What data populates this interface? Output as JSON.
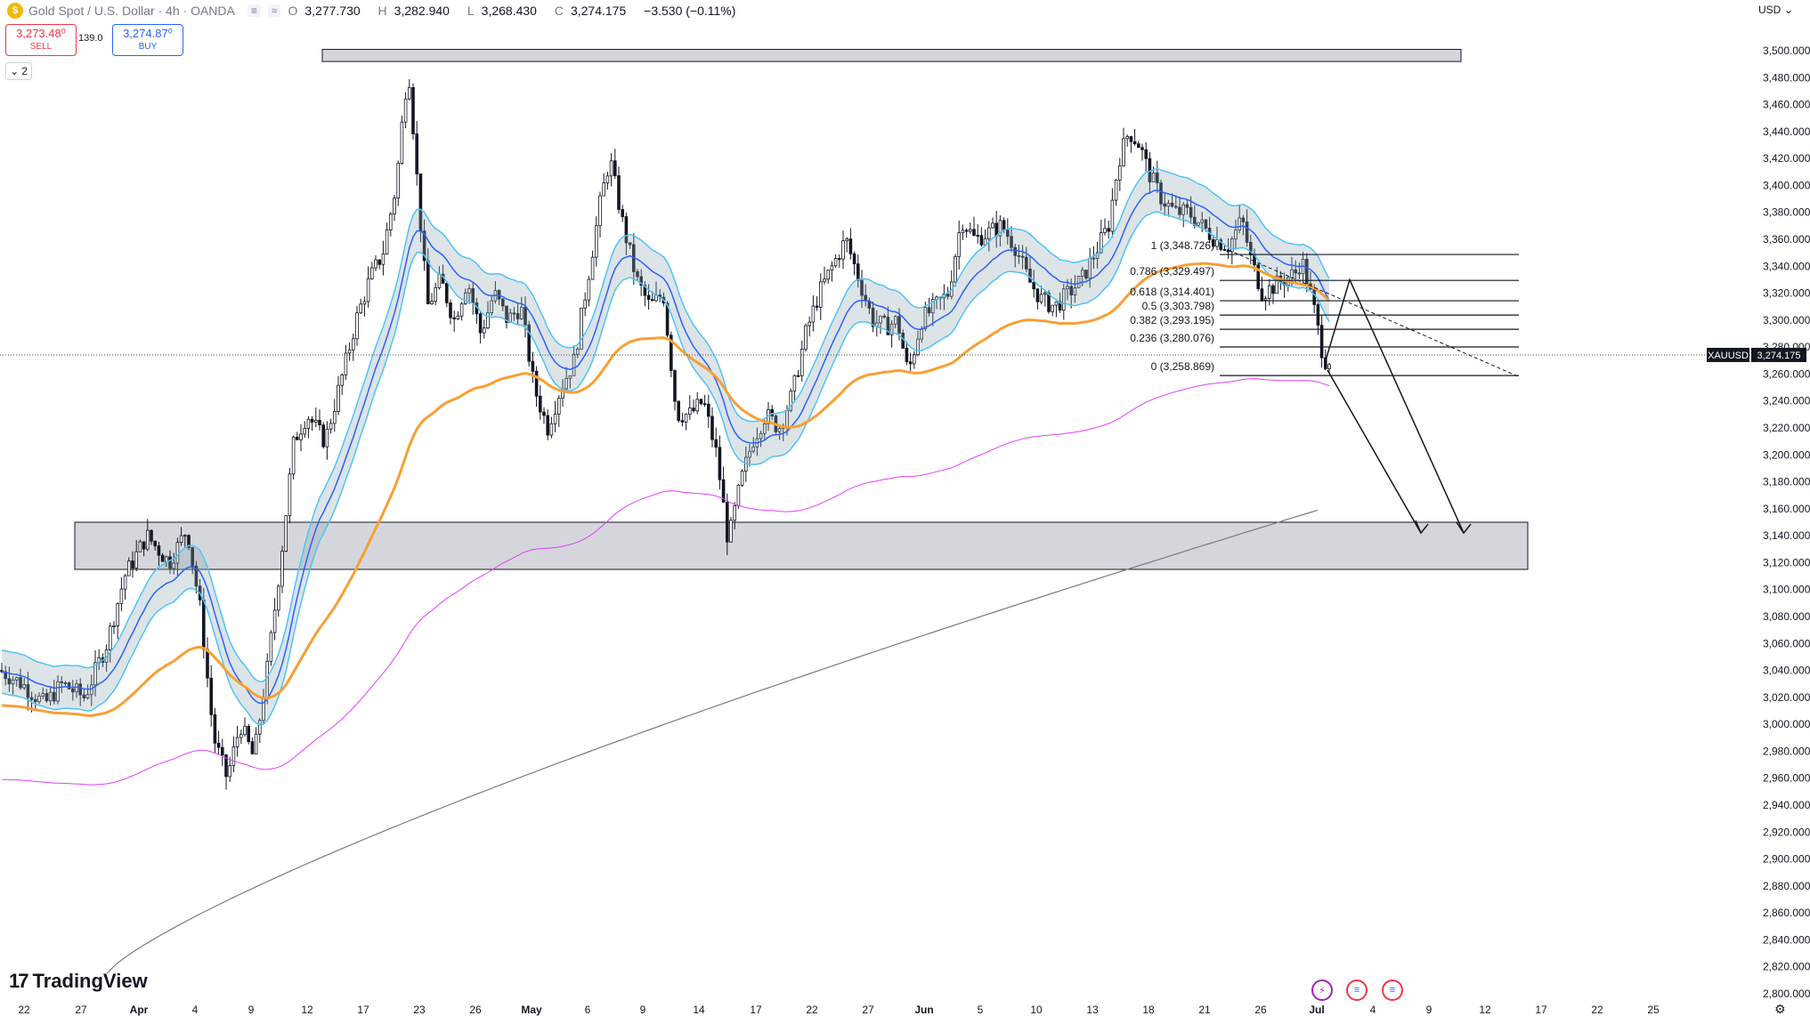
{
  "header": {
    "symbol_title": "Gold Spot / U.S. Dollar · 4h · OANDA",
    "chip_1": "≡",
    "chip_2": "≈",
    "open_label": "O",
    "open_value": "3,277.730",
    "high_label": "H",
    "high_value": "3,282.940",
    "low_label": "L",
    "low_value": "3,268.430",
    "close_label": "C",
    "close_value": "3,274.175",
    "change": "−3.530 (−0.11%)"
  },
  "trade": {
    "sell_price": "3,273.48⁰",
    "sell_label": "SELL",
    "spread": "139.0",
    "buy_price": "3,274.87⁰",
    "buy_label": "BUY"
  },
  "indicators_toggle": {
    "count": "2",
    "chevron": "⌄"
  },
  "price_axis": {
    "currency": "USD",
    "currency_chevron": "⌄"
  },
  "branding": {
    "logo_text": "TradingView",
    "logo_mark": "17"
  },
  "events": {
    "e1": "⚡",
    "e2": "≡",
    "e3": "≡"
  },
  "settings_icon": "⚙",
  "colors": {
    "up": "#131722",
    "down": "#131722",
    "ema_blue": "#2962ff",
    "ema_orange": "#f7a034",
    "ema_magenta": "#e040fb",
    "ema_gray": "#787b86",
    "zone": "#b2b5be"
  },
  "chart_data": {
    "type": "candlestick",
    "symbol": "XAUUSD",
    "timeframe": "4h",
    "ylim": [
      2800,
      3500
    ],
    "y_ticks": [
      "3,500.000",
      "3,480.000",
      "3,460.000",
      "3,440.000",
      "3,420.000",
      "3,400.000",
      "3,380.000",
      "3,360.000",
      "3,340.000",
      "3,320.000",
      "3,300.000",
      "3,280.000",
      "3,260.000",
      "3,240.000",
      "3,220.000",
      "3,200.000",
      "3,180.000",
      "3,160.000",
      "3,140.000",
      "3,120.000",
      "3,100.000",
      "3,080.000",
      "3,060.000",
      "3,040.000",
      "3,020.000",
      "3,000.000",
      "2,980.000",
      "2,960.000",
      "2,940.000",
      "2,920.000",
      "2,900.000",
      "2,880.000",
      "2,860.000",
      "2,840.000",
      "2,820.000",
      "2,800.000"
    ],
    "x_ticks": [
      "22",
      "27",
      "Apr",
      "4",
      "9",
      "12",
      "17",
      "23",
      "26",
      "May",
      "6",
      "9",
      "14",
      "17",
      "22",
      "27",
      "Jun",
      "5",
      "10",
      "13",
      "18",
      "21",
      "26",
      "Jul",
      "4",
      "9",
      "12",
      "17",
      "22",
      "25"
    ],
    "last_price_label": "XAUUSD",
    "last_price": "3,274.175",
    "last_price_value": 3274.175,
    "fib_levels": [
      {
        "label": "1 (3,348.726)",
        "value": 3348.726
      },
      {
        "label": "0.786 (3,329.497)",
        "value": 3329.497
      },
      {
        "label": "0.618 (3,314.401)",
        "value": 3314.401
      },
      {
        "label": "0.5 (3,303.798)",
        "value": 3303.798
      },
      {
        "label": "0.382 (3,293.195)",
        "value": 3293.195
      },
      {
        "label": "0.236 (3,280.076)",
        "value": 3280.076
      },
      {
        "label": "0 (3,258.869)",
        "value": 3258.869
      }
    ],
    "resistance_zone": [
      3492,
      3501
    ],
    "support_zone": [
      3115,
      3150
    ],
    "key_points": [
      {
        "date": "Mar 20",
        "close": 3045
      },
      {
        "date": "Apr 3",
        "high": 3168,
        "close": 3110
      },
      {
        "date": "Apr 7",
        "low": 2957
      },
      {
        "date": "Apr 22",
        "high": 3500
      },
      {
        "date": "May 1",
        "low": 3202
      },
      {
        "date": "May 6",
        "high": 3435
      },
      {
        "date": "May 15",
        "low": 3120
      },
      {
        "date": "May 26",
        "high": 3365
      },
      {
        "date": "May 29",
        "low": 3245
      },
      {
        "date": "Jun 3",
        "high": 3392
      },
      {
        "date": "Jun 16",
        "high": 3452
      },
      {
        "date": "Jun 26",
        "high": 3350
      },
      {
        "date": "Jun 30",
        "low": 3255,
        "close": 3274.175
      }
    ]
  }
}
